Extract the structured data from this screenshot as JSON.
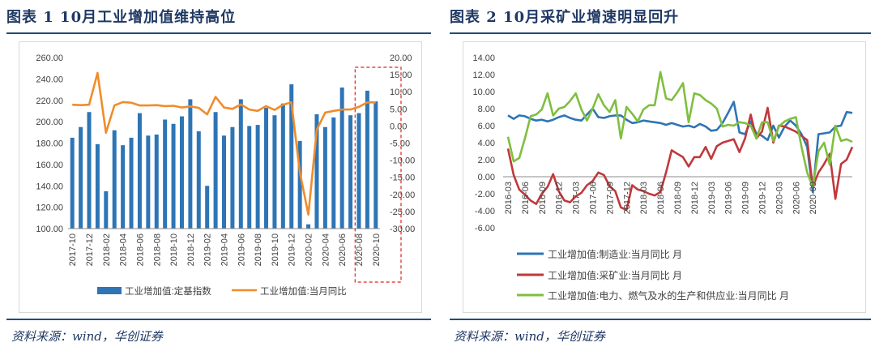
{
  "left": {
    "title": "图表 1   10月工业增加值维持高位",
    "source": "资料来源：wind，华创证券",
    "chart_data": {
      "type": "bar+line",
      "categories": [
        "2017-10",
        "2017-11",
        "2017-12",
        "2018-01",
        "2018-02",
        "2018-03",
        "2018-04",
        "2018-05",
        "2018-06",
        "2018-07",
        "2018-08",
        "2018-09",
        "2018-10",
        "2018-11",
        "2018-12",
        "2019-01",
        "2019-02",
        "2019-03",
        "2019-04",
        "2019-05",
        "2019-06",
        "2019-07",
        "2019-08",
        "2019-09",
        "2019-10",
        "2019-11",
        "2019-12",
        "2020-01",
        "2020-02",
        "2020-03",
        "2020-04",
        "2020-05",
        "2020-06",
        "2020-07",
        "2020-08",
        "2020-09",
        "2020-10"
      ],
      "x_tick_labels": [
        "2017-10",
        "2017-12",
        "2018-02",
        "2018-04",
        "2018-06",
        "2018-08",
        "2018-10",
        "2018-12",
        "2019-02",
        "2019-04",
        "2019-06",
        "2019-08",
        "2019-10",
        "2019-12",
        "2020-02",
        "2020-04",
        "2020-06",
        "2020-08",
        "2020-10"
      ],
      "series": [
        {
          "name": "工业增加值:定基指数",
          "type": "bar",
          "axis": "left",
          "color": "#2e75b6",
          "values": [
            185,
            195,
            209,
            179,
            135,
            192,
            178,
            185,
            208,
            187,
            188,
            202,
            198,
            205,
            221,
            191,
            140,
            209,
            187,
            195,
            221,
            196,
            197,
            213,
            206,
            217,
            235,
            182,
            104,
            207,
            195,
            204,
            232,
            206,
            208,
            229,
            219
          ]
        },
        {
          "name": "工业增加值:当月同比",
          "type": "line",
          "axis": "right",
          "color": "#f08c2b",
          "values": [
            6.2,
            6.1,
            6.2,
            15.5,
            -2.0,
            6.0,
            7.0,
            6.8,
            6.0,
            6.0,
            6.1,
            5.8,
            5.9,
            5.4,
            5.7,
            5.3,
            3.4,
            8.5,
            5.4,
            5.0,
            6.3,
            4.8,
            4.4,
            5.8,
            4.7,
            6.2,
            6.9,
            -13.5,
            -25.9,
            -1.1,
            3.9,
            4.4,
            4.8,
            4.8,
            5.6,
            6.9,
            6.9
          ]
        }
      ],
      "left_axis": {
        "min": 100,
        "max": 260,
        "ticks": [
          "260.00",
          "240.00",
          "220.00",
          "200.00",
          "180.00",
          "160.00",
          "140.00",
          "120.00",
          "100.00"
        ]
      },
      "right_axis": {
        "min": -30,
        "max": 20,
        "ticks": [
          "20.00",
          "15.00",
          "10.00",
          "5.00",
          "0.00",
          "-5.00",
          "-10.00",
          "-15.00",
          "-20.00",
          "-25.00",
          "-30.00"
        ]
      },
      "highlight": "2020-08 to 2020-10 (red dashed box)"
    }
  },
  "right": {
    "title": "图表 2   10月采矿业增速明显回升",
    "source": "资料来源：wind，华创证券",
    "chart_data": {
      "type": "line",
      "x_tick_labels": [
        "2016-03",
        "2016-06",
        "2016-09",
        "2016-12",
        "2017-03",
        "2017-06",
        "2017-09",
        "2017-12",
        "2018-03",
        "2018-06",
        "2018-09",
        "2018-12",
        "2019-03",
        "2019-06",
        "2019-09",
        "2019-12",
        "2020-03",
        "2020-06",
        "2020-09"
      ],
      "y_axis": {
        "min": -6,
        "max": 14,
        "ticks": [
          "14.00",
          "12.00",
          "10.00",
          "8.00",
          "6.00",
          "4.00",
          "2.00",
          "0.00",
          "-2.00",
          "-4.00",
          "-6.00"
        ]
      },
      "series": [
        {
          "name": "工业增加值:制造业:当月同比 月",
          "color": "#2e75b6",
          "values": [
            7.2,
            6.8,
            7.2,
            7.1,
            6.8,
            6.6,
            6.7,
            6.5,
            6.7,
            7.0,
            7.2,
            6.9,
            6.7,
            6.6,
            7.3,
            8.0,
            7.0,
            6.9,
            7.1,
            7.2,
            7.2,
            6.7,
            6.3,
            6.4,
            6.6,
            6.5,
            6.4,
            6.3,
            6.1,
            6.3,
            6.1,
            5.9,
            6.0,
            5.8,
            6.2,
            5.9,
            5.4,
            5.5,
            6.3,
            7.5,
            8.8,
            5.2,
            5.0,
            6.5,
            5.1,
            4.8,
            4.3,
            6.0,
            4.6,
            5.9,
            6.6,
            6.0,
            5.0,
            3.5,
            -1.8,
            5.0,
            5.1,
            5.2,
            5.9,
            6.0,
            7.6,
            7.5
          ]
        },
        {
          "name": "工业增加值:采矿业:当月同比 月",
          "color": "#c0393b",
          "values": [
            3.3,
            0.2,
            -1.5,
            -2.1,
            -2.8,
            -3.2,
            -2.0,
            -1.2,
            0.3,
            -1.7,
            -2.8,
            -3.0,
            -2.3,
            -1.9,
            -1.0,
            -0.5,
            0.5,
            0.2,
            -1.1,
            -1.7,
            -3.6,
            -3.9,
            -1.0,
            -1.5,
            -1.7,
            -2.0,
            -2.2,
            -1.8,
            0.5,
            3.1,
            2.7,
            2.3,
            1.2,
            2.3,
            2.3,
            3.5,
            2.1,
            3.6,
            4.0,
            4.2,
            4.4,
            2.9,
            4.5,
            7.3,
            4.5,
            5.3,
            8.1,
            4.0,
            6.0,
            5.9,
            5.6,
            5.3,
            4.8,
            4.3,
            -1.2,
            0.5,
            1.5,
            2.7,
            -2.6,
            1.5,
            2.0,
            3.5
          ]
        },
        {
          "name": "工业增加值:电力、燃气及水的生产和供应业:当月同比 月",
          "color": "#7fbf3f",
          "values": [
            4.7,
            1.8,
            2.2,
            4.5,
            7.1,
            7.3,
            7.9,
            9.8,
            7.2,
            8.0,
            8.2,
            8.9,
            9.8,
            7.9,
            6.6,
            8.0,
            9.7,
            8.4,
            7.6,
            9.0,
            4.5,
            8.2,
            7.4,
            6.5,
            7.9,
            8.4,
            8.4,
            12.3,
            9.2,
            9.0,
            9.9,
            11.0,
            6.4,
            9.8,
            9.6,
            9.0,
            8.6,
            8.0,
            5.9,
            6.1,
            6.0,
            6.4,
            6.3,
            6.0,
            4.5,
            6.4,
            6.4,
            4.2,
            5.9,
            6.5,
            6.8,
            7.0,
            3.5,
            0.5,
            -1.2,
            3.0,
            4.0,
            1.4,
            6.0,
            4.2,
            4.4,
            4.1
          ]
        }
      ]
    }
  }
}
